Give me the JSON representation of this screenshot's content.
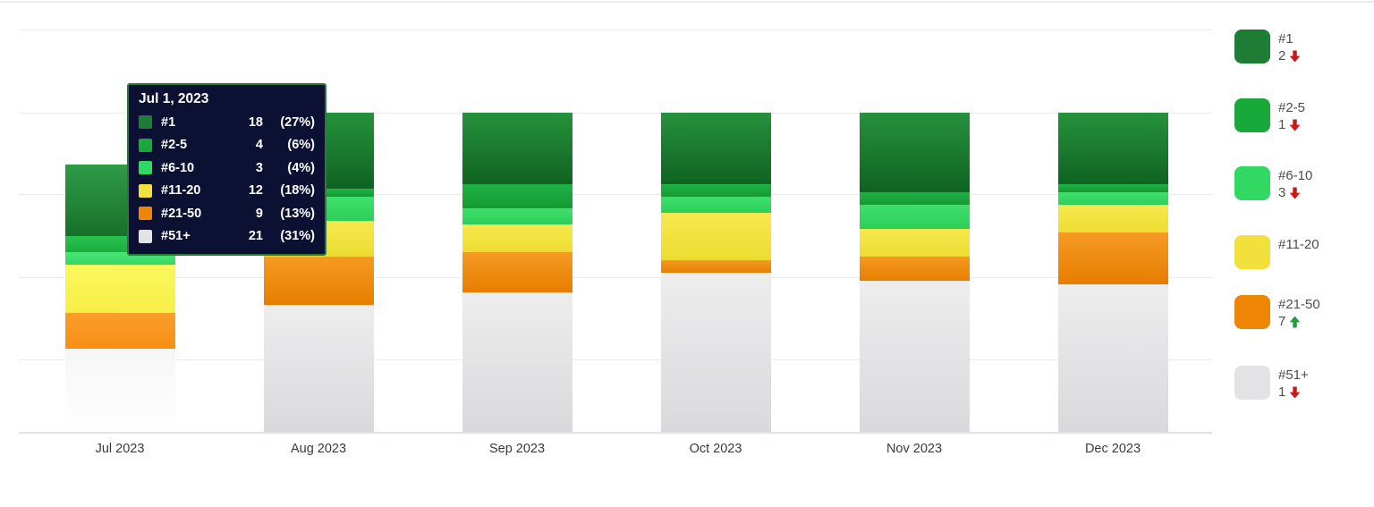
{
  "chart": {
    "tooltip": {
      "title": "Jul 1, 2023",
      "rows": [
        {
          "label": "#1",
          "value": "18",
          "pct": "(27%)"
        },
        {
          "label": "#2-5",
          "value": "4",
          "pct": "(6%)"
        },
        {
          "label": "#6-10",
          "value": "3",
          "pct": "(4%)"
        },
        {
          "label": "#11-20",
          "value": "12",
          "pct": "(18%)"
        },
        {
          "label": "#21-50",
          "value": "9",
          "pct": "(13%)"
        },
        {
          "label": "#51+",
          "value": "21",
          "pct": "(31%)"
        }
      ]
    },
    "legend": [
      {
        "label": "#1",
        "change": "2",
        "direction": "down"
      },
      {
        "label": "#2-5",
        "change": "1",
        "direction": "down"
      },
      {
        "label": "#6-10",
        "change": "3",
        "direction": "down"
      },
      {
        "label": "#11-20",
        "change": null,
        "direction": null
      },
      {
        "label": "#21-50",
        "change": "7",
        "direction": "up"
      },
      {
        "label": "#51+",
        "change": "1",
        "direction": "down"
      }
    ],
    "status_colors": {
      "up": "#17a33b",
      "down": "#d11414"
    }
  },
  "chart_data": {
    "type": "bar",
    "stacked": true,
    "title": "",
    "xlabel": "",
    "ylabel": "",
    "grid": true,
    "legend_position": "right",
    "hovered_category": "Jul 2023",
    "categories": [
      "Jul 2023",
      "Aug 2023",
      "Sep 2023",
      "Oct 2023",
      "Nov 2023",
      "Dec 2023"
    ],
    "series": [
      {
        "name": "#1",
        "color": "#1d7d35",
        "values": [
          18,
          19,
          18,
          18,
          20,
          18
        ]
      },
      {
        "name": "#2-5",
        "color": "#18a93a",
        "values": [
          4,
          2,
          6,
          3,
          3,
          2
        ]
      },
      {
        "name": "#6-10",
        "color": "#31d862",
        "values": [
          3,
          6,
          4,
          4,
          6,
          3
        ]
      },
      {
        "name": "#11-20",
        "color": "#f2e13c",
        "values": [
          12,
          9,
          7,
          12,
          7,
          7
        ]
      },
      {
        "name": "#21-50",
        "color": "#ee8604",
        "values": [
          9,
          12,
          10,
          3,
          6,
          13
        ]
      },
      {
        "name": "#51+",
        "color": "#e3e3e5",
        "values": [
          21,
          32,
          35,
          40,
          38,
          37
        ]
      }
    ],
    "totals": [
      67,
      80,
      80,
      80,
      80,
      80
    ]
  }
}
